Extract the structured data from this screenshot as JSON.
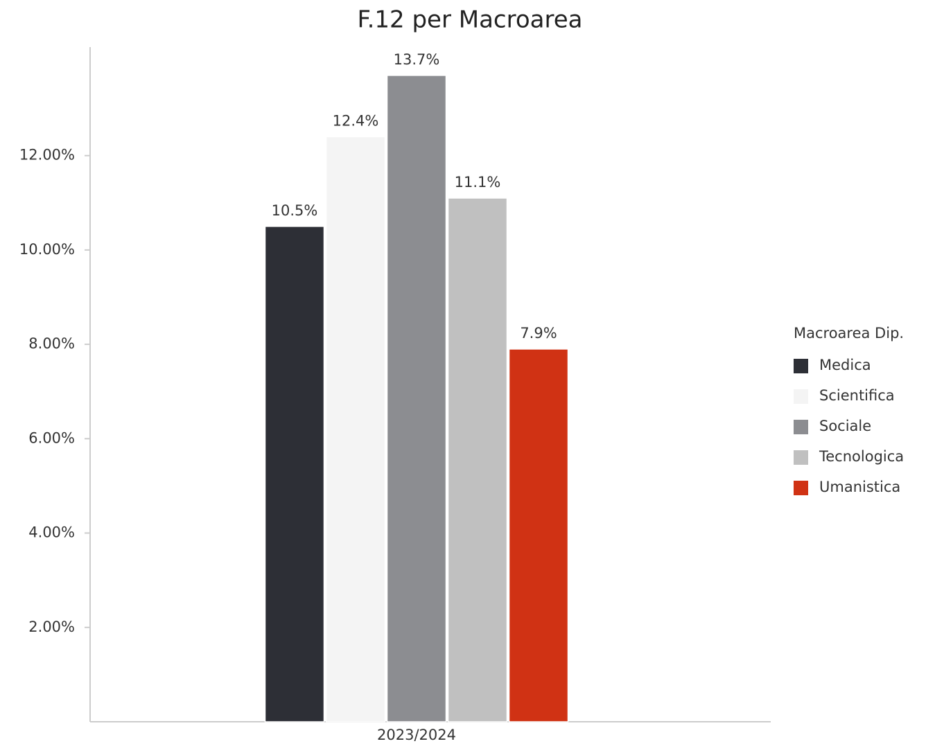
{
  "chart_data": {
    "type": "bar",
    "title": "F.12 per Macroarea",
    "categories": [
      "2023/2024"
    ],
    "series": [
      {
        "name": "Medica",
        "color": "#2d2f36",
        "values": [
          10.5
        ],
        "value_labels": [
          "10.5%"
        ]
      },
      {
        "name": "Scientifica",
        "color": "#f4f4f4",
        "values": [
          12.4
        ],
        "value_labels": [
          "12.4%"
        ]
      },
      {
        "name": "Sociale",
        "color": "#8c8d91",
        "values": [
          13.7
        ],
        "value_labels": [
          "13.7%"
        ]
      },
      {
        "name": "Tecnologica",
        "color": "#c0c0c0",
        "values": [
          11.1
        ],
        "value_labels": [
          "11.1%"
        ]
      },
      {
        "name": "Umanistica",
        "color": "#d03214",
        "values": [
          7.9
        ],
        "value_labels": [
          "7.9%"
        ]
      }
    ],
    "legend_title": "Macroarea Dip.",
    "legend": "right",
    "ylim": [
      0,
      14.3
    ],
    "yticks": [
      {
        "value": 2,
        "label": "2.00%"
      },
      {
        "value": 4,
        "label": "4.00%"
      },
      {
        "value": 6,
        "label": "6.00%"
      },
      {
        "value": 8,
        "label": "8.00%"
      },
      {
        "value": 10,
        "label": "10.00%"
      },
      {
        "value": 12,
        "label": "12.00%"
      }
    ],
    "grid": false
  }
}
